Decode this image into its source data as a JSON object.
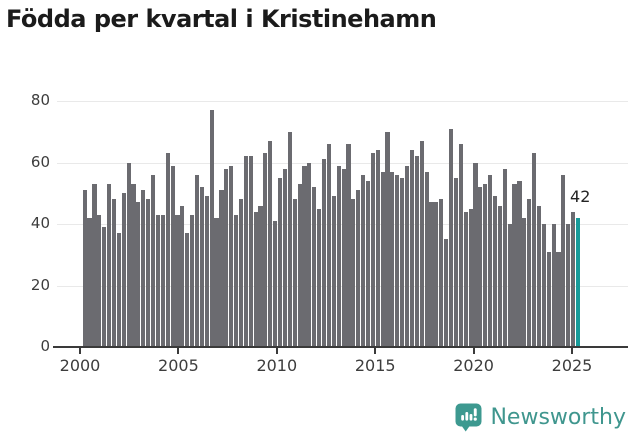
{
  "title": "Födda per kvartal i Kristinehamn",
  "annotation": {
    "label": "42"
  },
  "logo": {
    "text": "Newsworthy"
  },
  "colors": {
    "bar": "#6b6b70",
    "highlight": "#179b9a",
    "grid": "#e9e9e9",
    "axis": "#3a3a3a",
    "tick_label": "#3d3d3d",
    "title": "#1b1b1b",
    "annotation": "#242424",
    "logo": "#3f968e",
    "background": "#ffffff"
  },
  "chart_data": {
    "type": "bar",
    "title": "Födda per kvartal i Kristinehamn",
    "x_unit": "quarter",
    "period_start": "2000-Q1",
    "period_end": "2025-Q2",
    "values": [
      51,
      42,
      53,
      43,
      39,
      53,
      48,
      37,
      50,
      60,
      53,
      47,
      51,
      48,
      56,
      43,
      43,
      63,
      59,
      43,
      46,
      37,
      43,
      56,
      52,
      49,
      77,
      42,
      51,
      58,
      59,
      43,
      48,
      62,
      62,
      44,
      46,
      63,
      67,
      41,
      55,
      58,
      70,
      48,
      53,
      59,
      60,
      52,
      45,
      61,
      66,
      49,
      59,
      58,
      66,
      48,
      51,
      56,
      54,
      63,
      64,
      57,
      70,
      57,
      56,
      55,
      59,
      64,
      62,
      67,
      57,
      47,
      47,
      48,
      35,
      71,
      55,
      66,
      44,
      45,
      60,
      52,
      53,
      56,
      49,
      46,
      58,
      40,
      53,
      54,
      42,
      48,
      63,
      46,
      40,
      31,
      40,
      31,
      56,
      40,
      44,
      42
    ],
    "highlight": {
      "index": 101,
      "period": "2025-Q2",
      "value": 42,
      "label": "42"
    },
    "y_ticks": [
      0,
      20,
      40,
      60,
      80
    ],
    "x_year_ticks": [
      2000,
      2005,
      2010,
      2015,
      2020,
      2025
    ],
    "ylim": [
      0,
      84
    ],
    "grid": "horizontal",
    "legend": "none"
  }
}
